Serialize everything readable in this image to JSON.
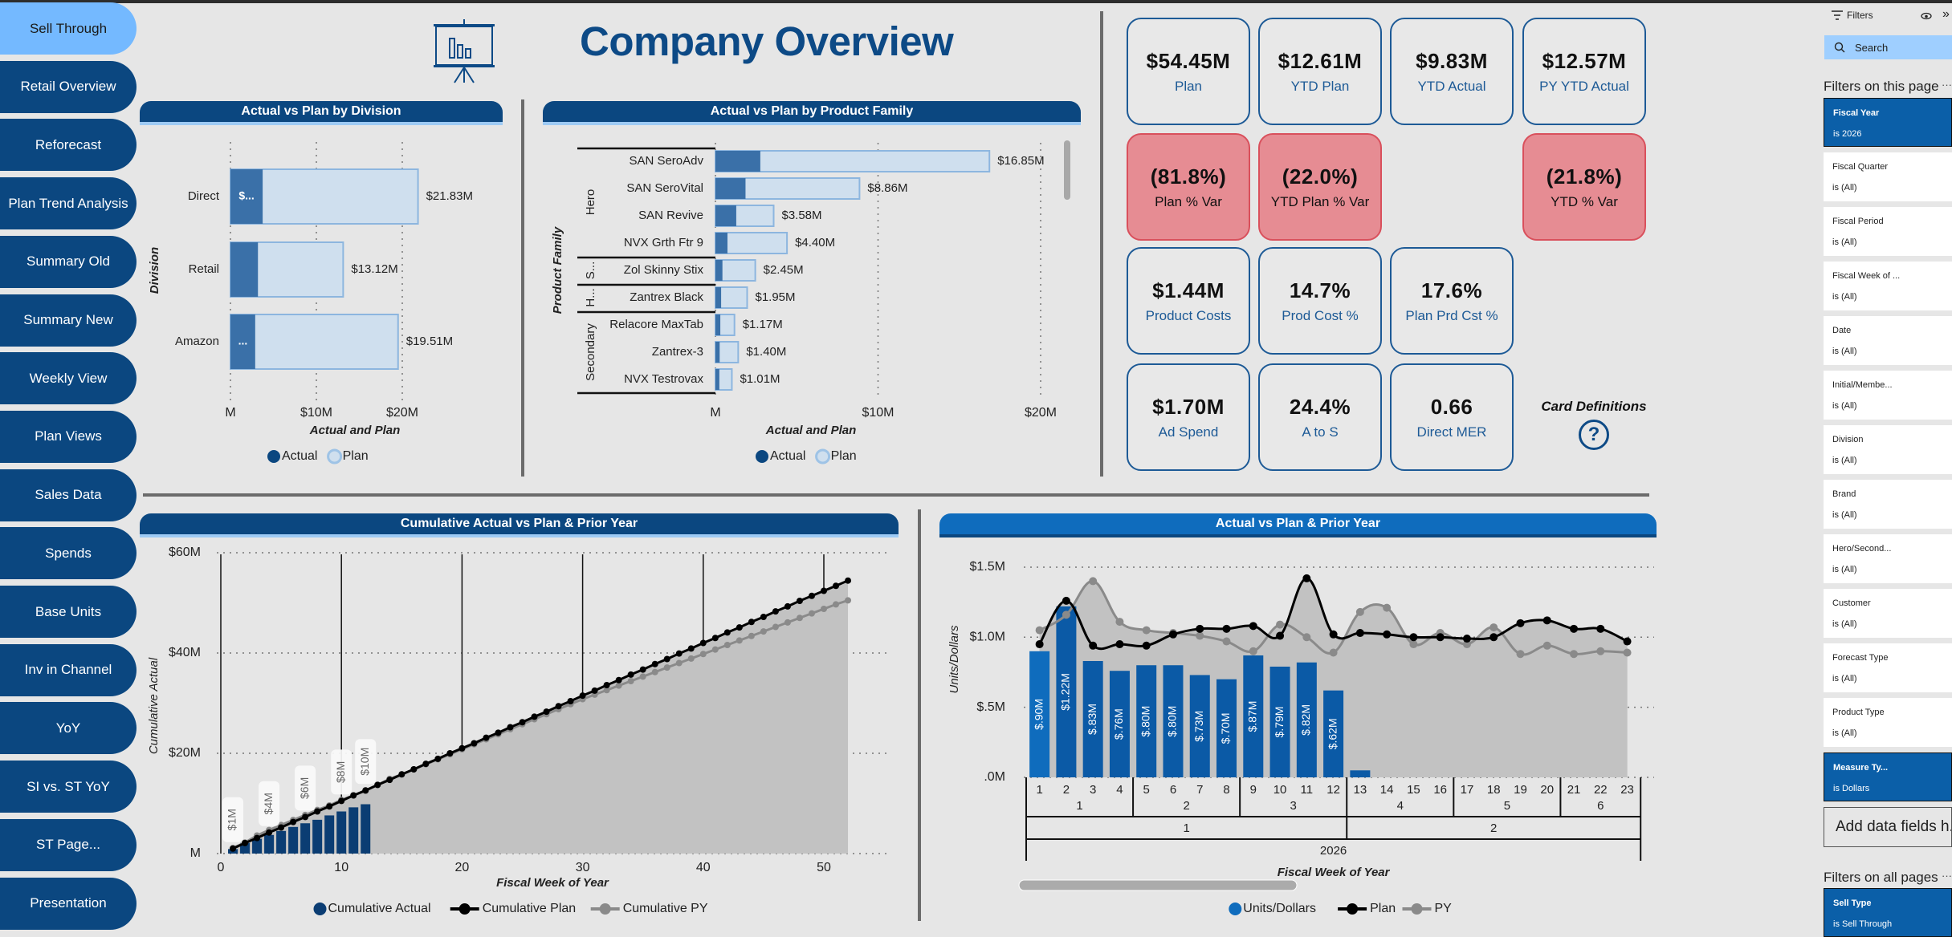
{
  "nav": {
    "active_index": 0,
    "items": [
      "Sell Through",
      "Retail Overview",
      "Reforecast",
      "Plan Trend Analysis",
      "Summary Old",
      "Summary New",
      "Weekly View",
      "Plan Views",
      "Sales Data",
      "Spends",
      "Base Units",
      "Inv in Channel",
      "YoY",
      "SI vs. ST YoY",
      "ST Page...",
      "Presentation"
    ]
  },
  "header": {
    "title": "Company Overview",
    "icon": "presentation-board-chart-icon"
  },
  "colors": {
    "brand_navy": "#0b4780",
    "active_nav": "#74b9ff",
    "negative_card": "#e68c93",
    "actual_bar": "#3a70a8",
    "plan_bar": "#cfdfee",
    "cum_actual": "#0b3d73",
    "weekly_actual": "#0b5aa6",
    "plan_line": "#000000",
    "py_line": "#8a8a8a",
    "area_fill": "#c2c2c2"
  },
  "kpi_rows": [
    [
      {
        "value": "$54.45M",
        "label": "Plan",
        "status": "normal"
      },
      {
        "value": "$12.61M",
        "label": "YTD Plan",
        "status": "normal"
      },
      {
        "value": "$9.83M",
        "label": "YTD Actual",
        "status": "normal"
      },
      {
        "value": "$12.57M",
        "label": "PY YTD Actual",
        "status": "normal"
      }
    ],
    [
      {
        "value": "(81.8%)",
        "label": "Plan % Var",
        "status": "negative"
      },
      {
        "value": "(22.0%)",
        "label": "YTD Plan % Var",
        "status": "negative"
      },
      null,
      {
        "value": "(21.8%)",
        "label": "YTD % Var",
        "status": "negative"
      }
    ],
    [
      {
        "value": "$1.44M",
        "label": "Product Costs",
        "status": "normal"
      },
      {
        "value": "14.7%",
        "label": "Prod Cost %",
        "status": "normal"
      },
      {
        "value": "17.6%",
        "label": "Plan Prd Cst %",
        "status": "normal"
      },
      null
    ],
    [
      {
        "value": "$1.70M",
        "label": "Ad Spend",
        "status": "normal"
      },
      {
        "value": "24.4%",
        "label": "A to S",
        "status": "normal"
      },
      {
        "value": "0.66",
        "label": "Direct MER",
        "status": "normal"
      },
      null
    ]
  ],
  "card_definitions": {
    "label": "Card Definitions",
    "icon": "help-circle-icon",
    "glyph": "?"
  },
  "chart_data": [
    {
      "type": "bar",
      "title": "Actual vs Plan by Division",
      "categories": [
        "Direct",
        "Retail",
        "Amazon"
      ],
      "series": [
        {
          "name": "Actual",
          "values": [
            3.75,
            3.2,
            2.88
          ]
        },
        {
          "name": "Plan",
          "values": [
            21.83,
            13.12,
            19.51
          ]
        }
      ],
      "actual_labels": [
        "$...",
        "",
        "..."
      ],
      "plan_labels": [
        "$21.83M",
        "$13.12M",
        "$19.51M"
      ],
      "xticks": [
        {
          "value": 0,
          "label": "M"
        },
        {
          "value": 10,
          "label": "$10M"
        },
        {
          "value": 20,
          "label": "$20M"
        }
      ],
      "xlabel": "Actual and Plan",
      "ylabel": "Division",
      "unit": "$M",
      "grid": true,
      "legend": "bottom"
    },
    {
      "type": "bar",
      "title": "Actual vs Plan by Product Family",
      "categories": [
        "SAN SeroAdv",
        "SAN SeroVital",
        "SAN Revive",
        "NVX Grth Ftr 9",
        "Zol Skinny Stix",
        "Zantrex Black",
        "Relacore MaxTab",
        "Zantrex-3",
        "NVX Testrovax"
      ],
      "groups": [
        {
          "label": "Hero",
          "from": 0,
          "to": 3
        },
        {
          "label": "S...",
          "from": 4,
          "to": 4
        },
        {
          "label": "H...",
          "from": 5,
          "to": 5
        },
        {
          "label": "Secondary",
          "from": 6,
          "to": 8
        }
      ],
      "series": [
        {
          "name": "Actual",
          "values": [
            2.76,
            1.85,
            1.28,
            0.74,
            0.43,
            0.35,
            0.3,
            0.26,
            0.24
          ]
        },
        {
          "name": "Plan",
          "values": [
            16.85,
            8.86,
            3.58,
            4.4,
            2.45,
            1.95,
            1.17,
            1.4,
            1.01
          ]
        }
      ],
      "plan_labels": [
        "$16.85M",
        "$8.86M",
        "$3.58M",
        "$4.40M",
        "$2.45M",
        "$1.95M",
        "$1.17M",
        "$1.40M",
        "$1.01M"
      ],
      "xticks": [
        {
          "value": 0,
          "label": "M"
        },
        {
          "value": 10,
          "label": "$10M"
        },
        {
          "value": 20,
          "label": "$20M"
        }
      ],
      "xlabel": "Actual and Plan",
      "ylabel": "Product Family",
      "unit": "$M",
      "grid": true,
      "legend": "bottom"
    },
    {
      "type": "line",
      "title": "Cumulative Actual vs Plan & Prior Year",
      "xlabel": "Fiscal Week of Year",
      "ylabel": "Cumulative Actual",
      "unit": "$M",
      "xlim": [
        0,
        55
      ],
      "ylim": [
        0,
        60
      ],
      "xticks": [
        0,
        10,
        20,
        30,
        40,
        50
      ],
      "yticks": [
        {
          "value": 0,
          "label": "M"
        },
        {
          "value": 20,
          "label": "$20M"
        },
        {
          "value": 40,
          "label": "$40M"
        },
        {
          "value": 60,
          "label": "$60M"
        }
      ],
      "series": [
        {
          "name": "Cumulative Actual",
          "kind": "bar",
          "values": [
            0.9,
            2.12,
            2.95,
            3.71,
            4.51,
            5.31,
            6.04,
            6.74,
            7.61,
            8.4,
            9.22,
            9.84
          ]
        },
        {
          "name": "Cumulative Plan",
          "kind": "line",
          "values": [
            1.0,
            2.1,
            3.1,
            4.2,
            5.2,
            6.3,
            7.3,
            8.4,
            9.4,
            10.5,
            11.6,
            12.6,
            13.7,
            14.7,
            15.8,
            16.8,
            17.9,
            18.9,
            20.0,
            21.0,
            22.0,
            23.1,
            24.1,
            25.2,
            26.2,
            27.3,
            28.3,
            29.4,
            30.4,
            31.5,
            32.5,
            33.6,
            34.6,
            35.7,
            36.7,
            37.8,
            38.8,
            39.9,
            40.9,
            42.0,
            43.0,
            44.1,
            45.1,
            46.2,
            47.2,
            48.3,
            49.3,
            50.4,
            51.4,
            52.4,
            53.4,
            54.45
          ]
        },
        {
          "name": "Cumulative PY",
          "kind": "line",
          "values": [
            1.1,
            2.2,
            3.6,
            4.7,
            5.7,
            6.7,
            7.7,
            8.7,
            9.6,
            10.7,
            11.6,
            12.5,
            13.7,
            14.9,
            15.8,
            16.8,
            17.8,
            18.8,
            19.8,
            20.8,
            21.8,
            22.8,
            23.8,
            24.8,
            25.8,
            26.8,
            27.8,
            28.8,
            29.8,
            30.8,
            31.7,
            32.6,
            33.5,
            34.4,
            35.3,
            36.2,
            37.1,
            38.0,
            38.9,
            39.8,
            40.7,
            41.6,
            42.5,
            43.4,
            44.3,
            45.2,
            46.1,
            47.0,
            47.9,
            48.8,
            49.7,
            50.5
          ]
        }
      ],
      "data_labels": [
        {
          "week": 1,
          "text": "$1M"
        },
        {
          "week": 4,
          "text": "$4M"
        },
        {
          "week": 7,
          "text": "$6M"
        },
        {
          "week": 10,
          "text": "$8M"
        },
        {
          "week": 12,
          "text": "$10M"
        }
      ],
      "grid": true,
      "legend": "bottom"
    },
    {
      "type": "bar",
      "title": "Actual vs Plan & Prior Year",
      "xlabel": "Fiscal Week of Year",
      "ylabel": "Units/Dollars",
      "unit": "$M",
      "ylim": [
        0,
        1.5
      ],
      "yticks": [
        {
          "value": 0,
          "label": ".0M"
        },
        {
          "value": 0.5,
          "label": "$.5M"
        },
        {
          "value": 1.0,
          "label": "$1.0M"
        },
        {
          "value": 1.5,
          "label": "$1.5M"
        }
      ],
      "weeks": [
        1,
        2,
        3,
        4,
        5,
        6,
        7,
        8,
        9,
        10,
        11,
        12,
        13,
        14,
        15,
        16,
        17,
        18,
        19,
        20,
        21,
        22,
        23
      ],
      "periods": [
        {
          "label": "1",
          "from": 1,
          "to": 4
        },
        {
          "label": "2",
          "from": 5,
          "to": 8
        },
        {
          "label": "3",
          "from": 9,
          "to": 12
        },
        {
          "label": "4",
          "from": 13,
          "to": 16
        },
        {
          "label": "5",
          "from": 17,
          "to": 20
        },
        {
          "label": "6",
          "from": 21,
          "to": 23
        }
      ],
      "quarters": [
        {
          "label": "1",
          "from": 1,
          "to": 12
        },
        {
          "label": "2",
          "from": 13,
          "to": 23
        }
      ],
      "year": "2026",
      "series": [
        {
          "name": "Units/Dollars",
          "kind": "bar",
          "values": [
            0.9,
            1.22,
            0.83,
            0.76,
            0.8,
            0.8,
            0.73,
            0.7,
            0.87,
            0.79,
            0.82,
            0.62,
            0.05
          ],
          "labels": [
            "$.90M",
            "$1.22M",
            "$.83M",
            "$.76M",
            "$.80M",
            "$.80M",
            "$.73M",
            "$.70M",
            "$.87M",
            "$.79M",
            "$.82M",
            "$.62M",
            ""
          ]
        },
        {
          "name": "Plan",
          "kind": "line",
          "values": [
            0.95,
            1.26,
            0.94,
            0.95,
            0.94,
            1.02,
            1.06,
            1.06,
            1.08,
            1.01,
            1.42,
            1.02,
            1.03,
            1.02,
            1.0,
            1.0,
            0.99,
            1.0,
            1.1,
            1.12,
            1.06,
            1.06,
            0.97
          ]
        },
        {
          "name": "PY",
          "kind": "line",
          "values": [
            1.05,
            1.16,
            1.4,
            1.11,
            1.05,
            1.03,
            1.01,
            0.97,
            0.9,
            1.09,
            1.0,
            0.89,
            1.18,
            1.21,
            0.95,
            1.03,
            0.95,
            1.07,
            0.88,
            0.94,
            0.88,
            0.9,
            0.89
          ]
        }
      ],
      "grid": true,
      "legend": "bottom"
    }
  ],
  "filters": {
    "title": "Filters",
    "search_placeholder": "Search",
    "page_section": "Filters on this page",
    "all_section": "Filters on all pages",
    "more": "···",
    "expand": "»",
    "add_fields": "Add data fields h...",
    "page_filters": [
      {
        "name": "Fiscal Year",
        "value": "is 2026",
        "active": true
      },
      {
        "name": "Fiscal Quarter",
        "value": "is (All)",
        "active": false
      },
      {
        "name": "Fiscal Period",
        "value": "is (All)",
        "active": false
      },
      {
        "name": "Fiscal Week of ...",
        "value": "is (All)",
        "active": false
      },
      {
        "name": "Date",
        "value": "is (All)",
        "active": false
      },
      {
        "name": "Initial/Membe...",
        "value": "is (All)",
        "active": false
      },
      {
        "name": "Division",
        "value": "is (All)",
        "active": false
      },
      {
        "name": "Brand",
        "value": "is (All)",
        "active": false
      },
      {
        "name": "Hero/Second...",
        "value": "is (All)",
        "active": false
      },
      {
        "name": "Customer",
        "value": "is (All)",
        "active": false
      },
      {
        "name": "Forecast Type",
        "value": "is (All)",
        "active": false
      },
      {
        "name": "Product Type",
        "value": "is (All)",
        "active": false
      },
      {
        "name": "Measure Ty...",
        "value": "is Dollars",
        "active": true
      }
    ],
    "all_filters": [
      {
        "name": "Sell Type",
        "value": "is Sell Through",
        "active": true
      }
    ]
  }
}
